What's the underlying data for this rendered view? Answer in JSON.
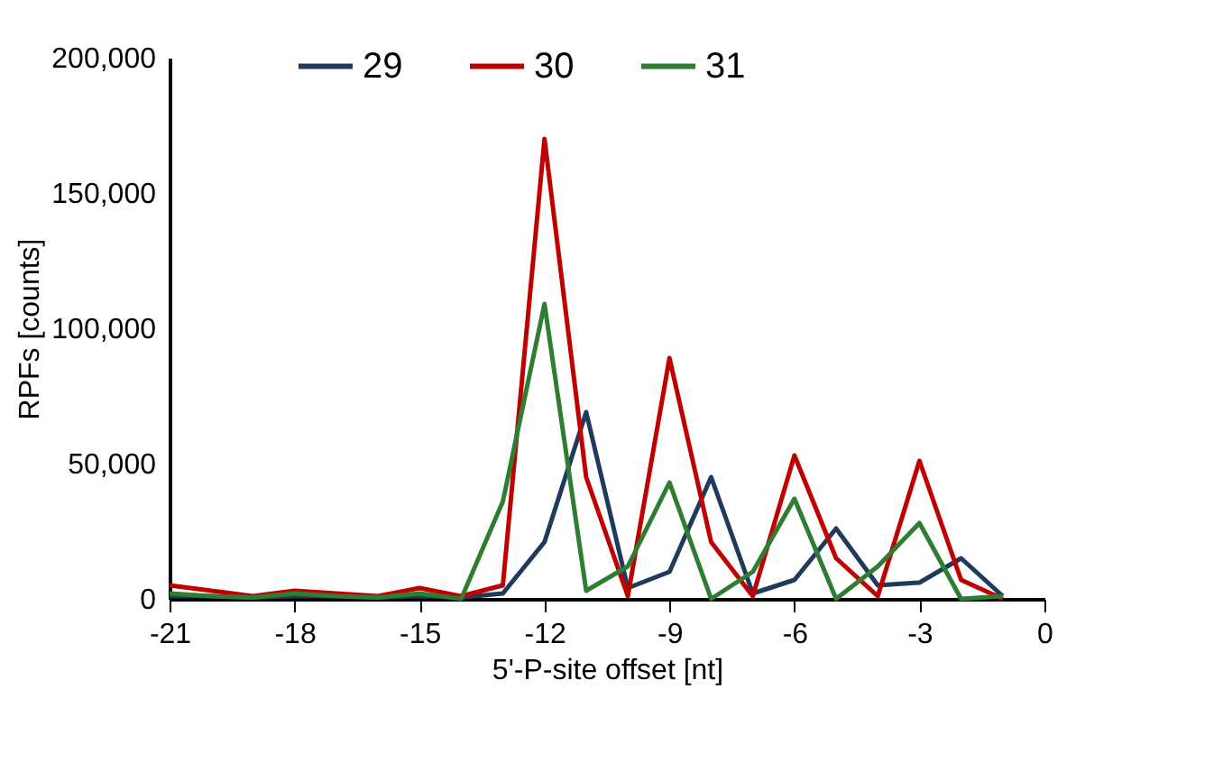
{
  "chart_data": {
    "type": "line",
    "xlabel": "5'-P-site offset [nt]",
    "ylabel": "RPFs [counts]",
    "x": [
      -21,
      -20,
      -19,
      -18,
      -17,
      -16,
      -15,
      -14,
      -13,
      -12,
      -11,
      -10,
      -9,
      -8,
      -7,
      -6,
      -5,
      -4,
      -3,
      -2,
      -1
    ],
    "series": [
      {
        "name": "29",
        "color": "#1f3a5a",
        "values": [
          1000,
          1000,
          500,
          1000,
          1000,
          500,
          1000,
          500,
          2000,
          21000,
          69000,
          4000,
          10000,
          45000,
          2000,
          7000,
          26000,
          5000,
          6000,
          15000,
          1000
        ]
      },
      {
        "name": "30",
        "color": "#c00000",
        "values": [
          5000,
          3000,
          1000,
          3000,
          2000,
          1000,
          4000,
          1000,
          5000,
          170000,
          45000,
          1000,
          89000,
          21000,
          1000,
          53000,
          15000,
          1000,
          51000,
          7000,
          0
        ]
      },
      {
        "name": "31",
        "color": "#2e7d32",
        "values": [
          2000,
          1000,
          500,
          2000,
          1000,
          500,
          2000,
          0,
          36000,
          109000,
          3000,
          12000,
          43000,
          0,
          10000,
          37000,
          0,
          12000,
          28000,
          0,
          1000
        ]
      }
    ],
    "xlim": [
      -21,
      0
    ],
    "xticks": [
      -21,
      -18,
      -15,
      -12,
      -9,
      -6,
      -3,
      0
    ],
    "ylim": [
      0,
      200000
    ],
    "yticks": [
      0,
      {
        "value": 50000,
        "label": "50,000"
      },
      {
        "value": 100000,
        "label": "100,000"
      },
      {
        "value": 150000,
        "label": "150,000"
      },
      {
        "value": 200000,
        "label": "200,000"
      }
    ],
    "grid": false,
    "legend": "top",
    "marker": "none",
    "line_style": "solid"
  }
}
